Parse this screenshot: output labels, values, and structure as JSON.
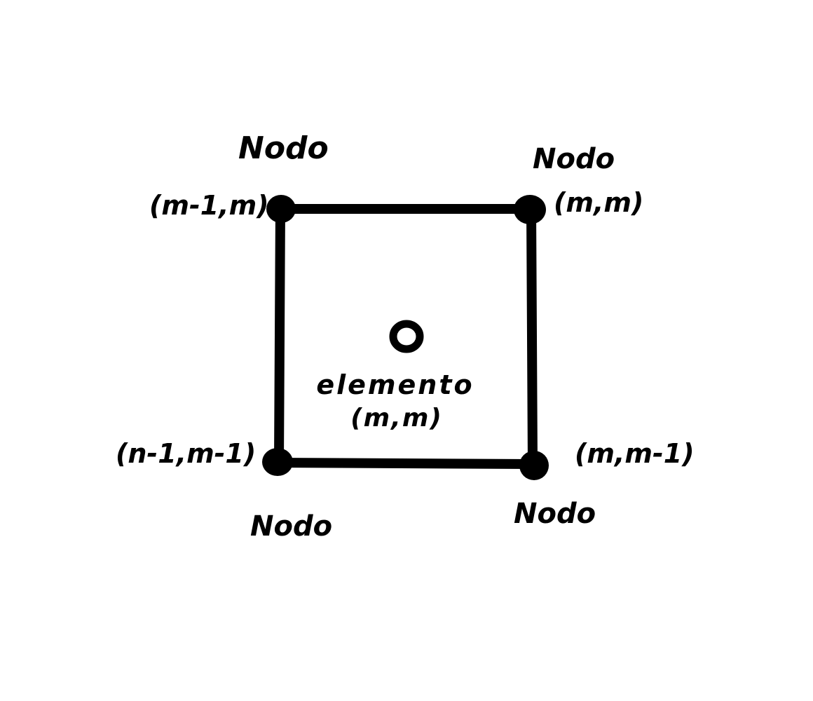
{
  "diagram": {
    "nodes": {
      "top_left": {
        "word": "Nodo",
        "coords": "(m-1,m)"
      },
      "top_right": {
        "word": "Nodo",
        "coords": "(m,m)"
      },
      "bottom_left": {
        "word": "Nodo",
        "coords": "(n-1,m-1)"
      },
      "bottom_right": {
        "word": "Nodo",
        "coords": "(m,m-1)"
      }
    },
    "element": {
      "label": "elemento",
      "coords": "(m,m)"
    },
    "colors": {
      "ink": "#000000",
      "background": "#ffffff"
    }
  }
}
